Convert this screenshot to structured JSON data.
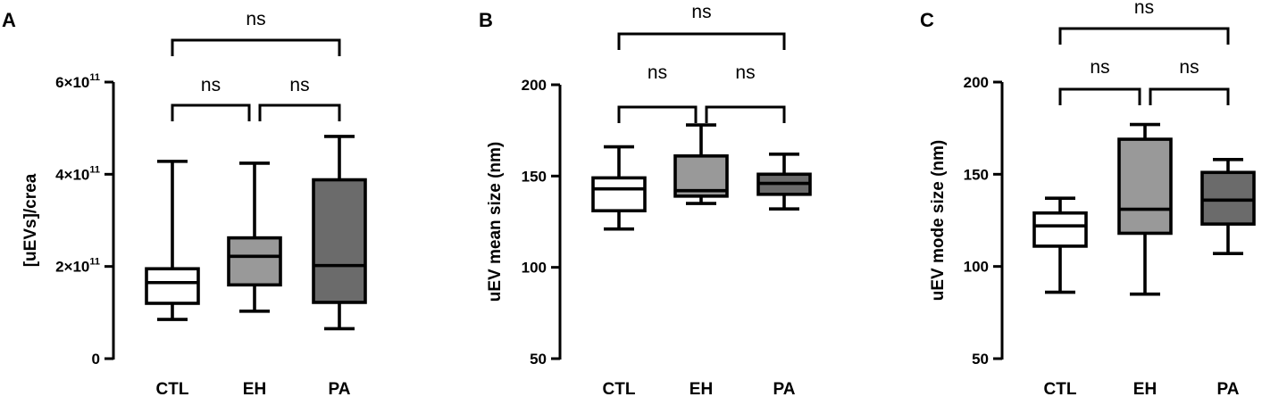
{
  "chart_data": [
    {
      "panel": "A",
      "type": "box",
      "ylabel": "[uEVs]/crea",
      "categories": [
        "CTL",
        "EH",
        "PA"
      ],
      "ylim": [
        0,
        600000000000.0
      ],
      "yticks": [
        {
          "value": 0,
          "label": "0",
          "exp": ""
        },
        {
          "value": 200000000000.0,
          "label": "2×10",
          "exp": "11"
        },
        {
          "value": 400000000000.0,
          "label": "4×10",
          "exp": "11"
        },
        {
          "value": 600000000000.0,
          "label": "6×10",
          "exp": "11"
        }
      ],
      "boxes": [
        {
          "category": "CTL",
          "min": 85000000000.0,
          "q1": 120000000000.0,
          "median": 165000000000.0,
          "q3": 195000000000.0,
          "max": 428000000000.0,
          "fill": "#ffffff"
        },
        {
          "category": "EH",
          "min": 103000000000.0,
          "q1": 160000000000.0,
          "median": 222000000000.0,
          "q3": 262000000000.0,
          "max": 424000000000.0,
          "fill": "#999999"
        },
        {
          "category": "PA",
          "min": 65000000000.0,
          "q1": 122000000000.0,
          "median": 202000000000.0,
          "q3": 388000000000.0,
          "max": 482000000000.0,
          "fill": "#6b6b6b"
        }
      ],
      "comparisons": [
        {
          "from": "CTL",
          "to": "EH",
          "label": "ns",
          "level": 1
        },
        {
          "from": "EH",
          "to": "PA",
          "label": "ns",
          "level": 1
        },
        {
          "from": "CTL",
          "to": "PA",
          "label": "ns",
          "level": 2
        }
      ]
    },
    {
      "panel": "B",
      "type": "box",
      "ylabel": "uEV mean size (nm)",
      "categories": [
        "CTL",
        "EH",
        "PA"
      ],
      "ylim": [
        50,
        200
      ],
      "yticks": [
        {
          "value": 50,
          "label": "50",
          "exp": ""
        },
        {
          "value": 100,
          "label": "100",
          "exp": ""
        },
        {
          "value": 150,
          "label": "150",
          "exp": ""
        },
        {
          "value": 200,
          "label": "200",
          "exp": ""
        }
      ],
      "boxes": [
        {
          "category": "CTL",
          "min": 121,
          "q1": 131,
          "median": 143,
          "q3": 149,
          "max": 166,
          "fill": "#ffffff"
        },
        {
          "category": "EH",
          "min": 135,
          "q1": 139,
          "median": 142,
          "q3": 161,
          "max": 178,
          "fill": "#999999"
        },
        {
          "category": "PA",
          "min": 132,
          "q1": 140,
          "median": 146,
          "q3": 151,
          "max": 162,
          "fill": "#6b6b6b"
        }
      ],
      "comparisons": [
        {
          "from": "CTL",
          "to": "EH",
          "label": "ns",
          "level": 1
        },
        {
          "from": "EH",
          "to": "PA",
          "label": "ns",
          "level": 1
        },
        {
          "from": "CTL",
          "to": "PA",
          "label": "ns",
          "level": 2
        }
      ]
    },
    {
      "panel": "C",
      "type": "box",
      "ylabel": "uEV mode size (nm)",
      "categories": [
        "CTL",
        "EH",
        "PA"
      ],
      "ylim": [
        50,
        200
      ],
      "yticks": [
        {
          "value": 50,
          "label": "50",
          "exp": ""
        },
        {
          "value": 100,
          "label": "100",
          "exp": ""
        },
        {
          "value": 150,
          "label": "150",
          "exp": ""
        },
        {
          "value": 200,
          "label": "200",
          "exp": ""
        }
      ],
      "boxes": [
        {
          "category": "CTL",
          "min": 86,
          "q1": 111,
          "median": 122,
          "q3": 129,
          "max": 137,
          "fill": "#ffffff"
        },
        {
          "category": "EH",
          "min": 85,
          "q1": 118,
          "median": 131,
          "q3": 169,
          "max": 177,
          "fill": "#999999"
        },
        {
          "category": "PA",
          "min": 107,
          "q1": 123,
          "median": 136,
          "q3": 151,
          "max": 158,
          "fill": "#6b6b6b"
        }
      ],
      "comparisons": [
        {
          "from": "CTL",
          "to": "EH",
          "label": "ns",
          "level": 1
        },
        {
          "from": "EH",
          "to": "PA",
          "label": "ns",
          "level": 1
        },
        {
          "from": "CTL",
          "to": "PA",
          "label": "ns",
          "level": 2
        }
      ]
    }
  ]
}
